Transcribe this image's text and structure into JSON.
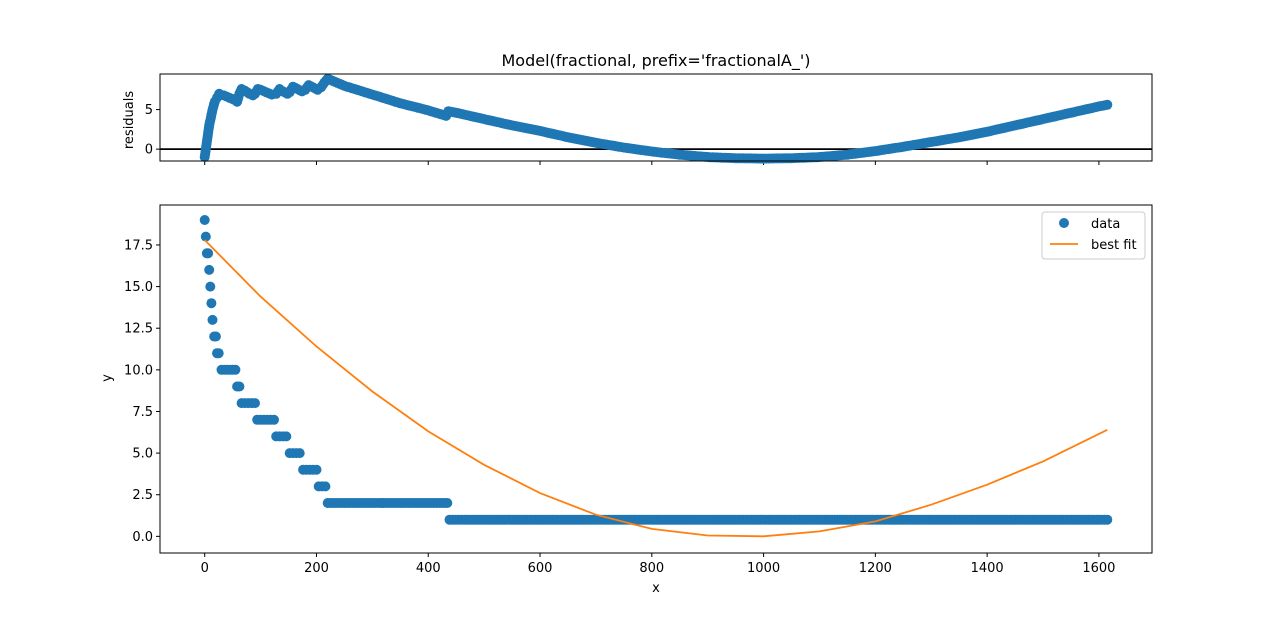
{
  "chart_data": [
    {
      "panel": "residuals",
      "type": "scatter",
      "title": "Model(fractional, prefix='fractionalA_')",
      "xlabel": "",
      "ylabel": "residuals",
      "xlim": [
        -80,
        1695
      ],
      "ylim": [
        -1.5,
        9.5
      ],
      "x_ticks": [
        0,
        200,
        400,
        600,
        800,
        1000,
        1200,
        1400,
        1600
      ],
      "y_ticks": [
        0,
        5
      ],
      "y_tick_labels": [
        "0",
        "5"
      ],
      "reference_line_y": 0,
      "colors": {
        "points": "#1f77b4",
        "reference_line": "#000000"
      },
      "series": [
        {
          "marker": "circle",
          "points": [
            [
              0,
              -1.0
            ],
            [
              2,
              0.0
            ],
            [
              4,
              1.0
            ],
            [
              6,
              2.0
            ],
            [
              8,
              3.0
            ],
            [
              11,
              4.0
            ],
            [
              14,
              5.0
            ],
            [
              18,
              6.0
            ],
            [
              22,
              6.5
            ],
            [
              26,
              7.0
            ],
            [
              34,
              6.8
            ],
            [
              44,
              6.5
            ],
            [
              54,
              6.2
            ],
            [
              58,
              6.0
            ],
            [
              62,
              7.0
            ],
            [
              66,
              7.6
            ],
            [
              72,
              7.4
            ],
            [
              80,
              7.0
            ],
            [
              86,
              6.8
            ],
            [
              90,
              7.0
            ],
            [
              95,
              7.6
            ],
            [
              100,
              7.5
            ],
            [
              110,
              7.2
            ],
            [
              120,
              6.9
            ],
            [
              128,
              7.0
            ],
            [
              134,
              7.6
            ],
            [
              140,
              7.3
            ],
            [
              148,
              7.0
            ],
            [
              152,
              7.2
            ],
            [
              158,
              7.9
            ],
            [
              166,
              7.6
            ],
            [
              174,
              7.3
            ],
            [
              180,
              7.5
            ],
            [
              186,
              8.1
            ],
            [
              194,
              7.8
            ],
            [
              202,
              7.5
            ],
            [
              208,
              7.8
            ],
            [
              214,
              8.4
            ],
            [
              220,
              8.9
            ],
            [
              250,
              8.0
            ],
            [
              300,
              6.9
            ],
            [
              350,
              5.8
            ],
            [
              400,
              4.9
            ],
            [
              432,
              4.2
            ],
            [
              436,
              4.8
            ],
            [
              450,
              4.6
            ],
            [
              500,
              3.8
            ],
            [
              550,
              3.0
            ],
            [
              600,
              2.3
            ],
            [
              650,
              1.5
            ],
            [
              700,
              0.8
            ],
            [
              750,
              0.2
            ],
            [
              800,
              -0.3
            ],
            [
              850,
              -0.7
            ],
            [
              900,
              -1.0
            ],
            [
              950,
              -1.15
            ],
            [
              1000,
              -1.2
            ],
            [
              1050,
              -1.15
            ],
            [
              1100,
              -1.0
            ],
            [
              1150,
              -0.7
            ],
            [
              1200,
              -0.25
            ],
            [
              1250,
              0.3
            ],
            [
              1300,
              0.9
            ],
            [
              1350,
              1.5
            ],
            [
              1400,
              2.2
            ],
            [
              1450,
              3.0
            ],
            [
              1500,
              3.8
            ],
            [
              1550,
              4.6
            ],
            [
              1600,
              5.4
            ],
            [
              1615,
              5.6
            ]
          ]
        }
      ]
    },
    {
      "panel": "main",
      "type": "scatter",
      "title": "",
      "xlabel": "x",
      "ylabel": "y",
      "xlim": [
        -80,
        1695
      ],
      "ylim": [
        -1.0,
        19.9
      ],
      "x_ticks": [
        0,
        200,
        400,
        600,
        800,
        1000,
        1200,
        1400,
        1600
      ],
      "y_ticks": [
        0,
        2.5,
        5,
        7.5,
        10,
        12.5,
        15,
        17.5
      ],
      "y_tick_labels": [
        "0.0",
        "2.5",
        "5.0",
        "7.5",
        "10.0",
        "12.5",
        "15.0",
        "17.5"
      ],
      "legend": {
        "position": "top-right",
        "entries": [
          "data",
          "best fit"
        ]
      },
      "colors": {
        "data": "#1f77b4",
        "best_fit": "#ff7f0e"
      },
      "series": [
        {
          "name": "data",
          "marker": "circle",
          "points": [
            [
              0,
              19
            ],
            [
              2,
              18
            ],
            [
              4,
              17
            ],
            [
              6,
              17
            ],
            [
              8,
              16
            ],
            [
              10,
              15
            ],
            [
              12,
              14
            ],
            [
              14,
              13
            ],
            [
              17,
              12
            ],
            [
              20,
              12
            ],
            [
              22,
              11
            ],
            [
              25,
              11
            ],
            [
              30,
              10
            ],
            [
              35,
              10
            ],
            [
              40,
              10
            ],
            [
              45,
              10
            ],
            [
              50,
              10
            ],
            [
              55,
              10
            ],
            [
              58,
              9
            ],
            [
              62,
              9
            ],
            [
              66,
              8
            ],
            [
              72,
              8
            ],
            [
              78,
              8
            ],
            [
              84,
              8
            ],
            [
              90,
              8
            ],
            [
              94,
              7
            ],
            [
              100,
              7
            ],
            [
              106,
              7
            ],
            [
              112,
              7
            ],
            [
              118,
              7
            ],
            [
              124,
              7
            ],
            [
              128,
              6
            ],
            [
              134,
              6
            ],
            [
              140,
              6
            ],
            [
              146,
              6
            ],
            [
              152,
              5
            ],
            [
              158,
              5
            ],
            [
              164,
              5
            ],
            [
              170,
              5
            ],
            [
              176,
              4
            ],
            [
              182,
              4
            ],
            [
              188,
              4
            ],
            [
              194,
              4
            ],
            [
              200,
              4
            ],
            [
              204,
              3
            ],
            [
              210,
              3
            ],
            [
              216,
              3
            ],
            [
              220,
              2
            ],
            [
              240,
              2
            ],
            [
              260,
              2
            ],
            [
              280,
              2
            ],
            [
              300,
              2
            ],
            [
              320,
              2
            ],
            [
              340,
              2
            ],
            [
              360,
              2
            ],
            [
              380,
              2
            ],
            [
              400,
              2
            ],
            [
              420,
              2
            ],
            [
              434,
              2
            ],
            [
              438,
              1
            ],
            [
              460,
              1
            ],
            [
              500,
              1
            ],
            [
              550,
              1
            ],
            [
              600,
              1
            ],
            [
              650,
              1
            ],
            [
              700,
              1
            ],
            [
              750,
              1
            ],
            [
              800,
              1
            ],
            [
              850,
              1
            ],
            [
              900,
              1
            ],
            [
              950,
              1
            ],
            [
              1000,
              1
            ],
            [
              1050,
              1
            ],
            [
              1100,
              1
            ],
            [
              1150,
              1
            ],
            [
              1200,
              1
            ],
            [
              1250,
              1
            ],
            [
              1300,
              1
            ],
            [
              1350,
              1
            ],
            [
              1400,
              1
            ],
            [
              1450,
              1
            ],
            [
              1500,
              1
            ],
            [
              1550,
              1
            ],
            [
              1600,
              1
            ],
            [
              1615,
              1
            ]
          ]
        },
        {
          "name": "best fit",
          "line": true,
          "points": [
            [
              0,
              17.8
            ],
            [
              100,
              14.4
            ],
            [
              200,
              11.4
            ],
            [
              300,
              8.7
            ],
            [
              400,
              6.3
            ],
            [
              500,
              4.3
            ],
            [
              600,
              2.6
            ],
            [
              700,
              1.3
            ],
            [
              800,
              0.45
            ],
            [
              900,
              0.05
            ],
            [
              1000,
              0.0
            ],
            [
              1100,
              0.3
            ],
            [
              1200,
              0.9
            ],
            [
              1300,
              1.9
            ],
            [
              1400,
              3.1
            ],
            [
              1500,
              4.5
            ],
            [
              1615,
              6.4
            ]
          ]
        }
      ]
    }
  ]
}
